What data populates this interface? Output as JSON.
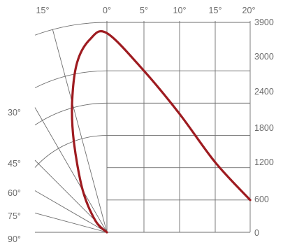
{
  "chart_data": {
    "type": "polar",
    "title": "",
    "value_axis": {
      "ticks": [
        0,
        600,
        1200,
        1800,
        2400,
        3000,
        3900
      ],
      "tick_labels": [
        "0",
        "600",
        "1200",
        "1800",
        "2400",
        "3000",
        "3900"
      ],
      "range": [
        0,
        3900
      ]
    },
    "top_axis": {
      "ticks": [
        -15,
        0,
        5,
        10,
        15,
        20
      ],
      "tick_labels": [
        "15°",
        "0°",
        "5°",
        "10°",
        "15°",
        "20°"
      ]
    },
    "left_axis": {
      "ticks": [
        30,
        45,
        60,
        75,
        90
      ],
      "tick_labels": [
        "30°",
        "45°",
        "60°",
        "75°",
        "90°"
      ]
    },
    "grid": true,
    "series": [
      {
        "values_by_angle": [
          {
            "angle": 0,
            "value": 3700
          },
          {
            "angle": 5,
            "value": 3000
          },
          {
            "angle": 10,
            "value": 2200
          },
          {
            "angle": 15,
            "value": 1300
          },
          {
            "angle": 20,
            "value": 600
          },
          {
            "angle": -5,
            "value": 3600
          },
          {
            "angle": -10,
            "value": 3200
          },
          {
            "angle": -15,
            "value": 2500
          },
          {
            "angle": -20,
            "value": 1800
          },
          {
            "angle": -30,
            "value": 900
          },
          {
            "angle": -45,
            "value": 300
          },
          {
            "angle": -90,
            "value": 0
          }
        ],
        "color": "#9e1b20"
      }
    ]
  }
}
